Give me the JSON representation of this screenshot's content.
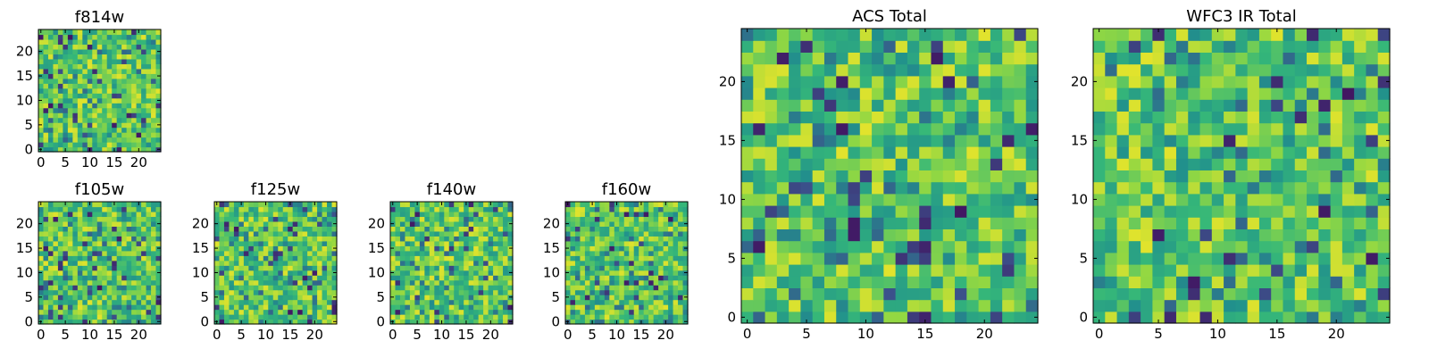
{
  "chart_data": [
    {
      "type": "heatmap",
      "title": "f814w",
      "size": 25,
      "xlabel": "",
      "ylabel": "",
      "xticks": [
        "0",
        "5",
        "10",
        "15",
        "20"
      ],
      "yticks": [
        "0",
        "5",
        "10",
        "15",
        "20"
      ],
      "xlim": [
        -0.5,
        24.5
      ],
      "ylim": [
        -0.5,
        24.5
      ],
      "colormap": "viridis",
      "seed": 11
    },
    {
      "type": "heatmap",
      "title": "f105w",
      "size": 25,
      "xlabel": "",
      "ylabel": "",
      "xticks": [
        "0",
        "5",
        "10",
        "15",
        "20"
      ],
      "yticks": [
        "0",
        "5",
        "10",
        "15",
        "20"
      ],
      "xlim": [
        -0.5,
        24.5
      ],
      "ylim": [
        -0.5,
        24.5
      ],
      "colormap": "viridis",
      "seed": 23
    },
    {
      "type": "heatmap",
      "title": "f125w",
      "size": 25,
      "xlabel": "",
      "ylabel": "",
      "xticks": [
        "0",
        "5",
        "10",
        "15",
        "20"
      ],
      "yticks": [
        "0",
        "5",
        "10",
        "15",
        "20"
      ],
      "xlim": [
        -0.5,
        24.5
      ],
      "ylim": [
        -0.5,
        24.5
      ],
      "colormap": "viridis",
      "seed": 37
    },
    {
      "type": "heatmap",
      "title": "f140w",
      "size": 25,
      "xlabel": "",
      "ylabel": "",
      "xticks": [
        "0",
        "5",
        "10",
        "15",
        "20"
      ],
      "yticks": [
        "0",
        "5",
        "10",
        "15",
        "20"
      ],
      "xlim": [
        -0.5,
        24.5
      ],
      "ylim": [
        -0.5,
        24.5
      ],
      "colormap": "viridis",
      "seed": 41
    },
    {
      "type": "heatmap",
      "title": "f160w",
      "size": 25,
      "xlabel": "",
      "ylabel": "",
      "xticks": [
        "0",
        "5",
        "10",
        "15",
        "20"
      ],
      "yticks": [
        "0",
        "5",
        "10",
        "15",
        "20"
      ],
      "xlim": [
        -0.5,
        24.5
      ],
      "ylim": [
        -0.5,
        24.5
      ],
      "colormap": "viridis",
      "seed": 53
    },
    {
      "type": "heatmap",
      "title": "ACS Total",
      "size": 25,
      "xlabel": "",
      "ylabel": "",
      "xticks": [
        "0",
        "5",
        "10",
        "15",
        "20"
      ],
      "yticks": [
        "0",
        "5",
        "10",
        "15",
        "20"
      ],
      "xlim": [
        -0.5,
        24.5
      ],
      "ylim": [
        -0.5,
        24.5
      ],
      "colormap": "viridis",
      "seed": 67
    },
    {
      "type": "heatmap",
      "title": "WFC3 IR Total",
      "size": 25,
      "xlabel": "",
      "ylabel": "",
      "xticks": [
        "0",
        "5",
        "10",
        "15",
        "20"
      ],
      "yticks": [
        "0",
        "5",
        "10",
        "15",
        "20"
      ],
      "xlim": [
        -0.5,
        24.5
      ],
      "ylim": [
        -0.5,
        24.5
      ],
      "colormap": "viridis",
      "seed": 79
    }
  ]
}
